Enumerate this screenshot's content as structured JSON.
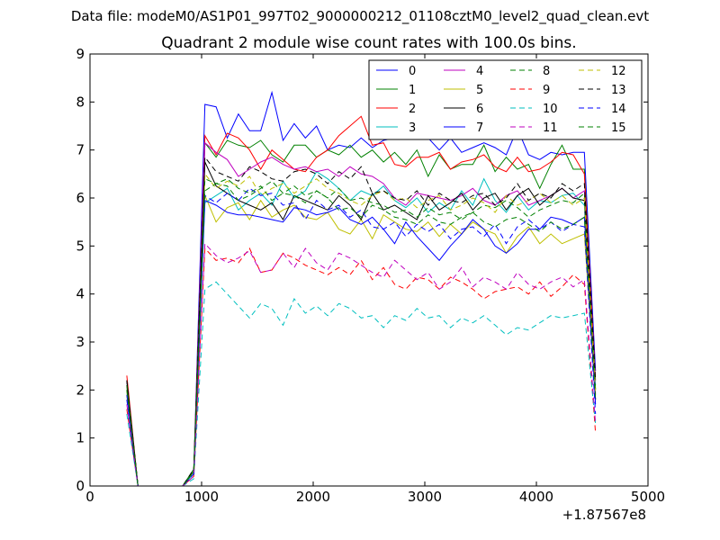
{
  "chart_data": {
    "type": "line",
    "suptitle": "Data file: modeM0/AS1P01_997T02_9000000212_01108cztM0_level2_quad_clean.evt",
    "title": "Quadrant 2 module wise count rates with 100.0s bins.",
    "xlabel": "",
    "ylabel": "",
    "x_offset_label": "+1.87567e8",
    "xlim": [
      0,
      5000
    ],
    "ylim": [
      0,
      9
    ],
    "xticks": [
      0,
      1000,
      2000,
      3000,
      4000,
      5000
    ],
    "yticks": [
      0,
      1,
      2,
      3,
      4,
      5,
      6,
      7,
      8,
      9
    ],
    "grid": false,
    "legend_position": "top-right",
    "legend_columns": 4,
    "x": [
      330,
      430,
      530,
      630,
      730,
      830,
      930,
      1030,
      1130,
      1230,
      1330,
      1430,
      1530,
      1630,
      1730,
      1830,
      1930,
      2030,
      2130,
      2230,
      2330,
      2430,
      2530,
      2630,
      2730,
      2830,
      2930,
      3030,
      3130,
      3230,
      3330,
      3430,
      3530,
      3630,
      3730,
      3830,
      3930,
      4030,
      4130,
      4230,
      4330,
      4430,
      4530
    ],
    "series": [
      {
        "name": "0",
        "color": "#0000ff",
        "dash": "solid",
        "values": [
          2.2,
          0,
          0,
          0,
          0,
          0,
          0.3,
          7.95,
          7.9,
          7.25,
          7.75,
          7.4,
          7.4,
          8.2,
          7.2,
          7.55,
          7.25,
          7.5,
          7.0,
          7.1,
          7.05,
          7.25,
          7.05,
          7.2,
          7.25,
          7.3,
          7.25,
          7.25,
          7.0,
          7.25,
          6.95,
          7.05,
          7.15,
          7.05,
          6.9,
          7.45,
          6.9,
          6.8,
          6.95,
          6.9,
          6.95,
          6.95,
          2.4
        ]
      },
      {
        "name": "1",
        "color": "#008000",
        "dash": "solid",
        "values": [
          2.1,
          0,
          0,
          0,
          0,
          0,
          0.35,
          7.15,
          6.85,
          7.2,
          7.1,
          7.05,
          7.2,
          6.9,
          6.75,
          7.1,
          7.1,
          6.85,
          7.0,
          6.9,
          7.1,
          6.85,
          7.0,
          6.75,
          6.95,
          6.7,
          7.0,
          6.45,
          6.9,
          6.6,
          6.7,
          6.7,
          7.1,
          6.55,
          6.85,
          6.6,
          6.7,
          6.2,
          6.7,
          7.1,
          6.6,
          6.6,
          2.0
        ]
      },
      {
        "name": "2",
        "color": "#ff0000",
        "dash": "solid",
        "values": [
          2.3,
          0,
          0,
          0,
          0,
          0,
          0.3,
          7.3,
          6.9,
          7.35,
          7.25,
          7.0,
          6.6,
          7.0,
          6.8,
          6.6,
          6.55,
          6.85,
          7.0,
          7.3,
          7.5,
          7.7,
          7.1,
          7.15,
          6.7,
          6.65,
          6.85,
          6.85,
          6.95,
          6.6,
          6.75,
          6.8,
          6.9,
          6.65,
          6.55,
          6.85,
          6.55,
          6.6,
          6.75,
          6.95,
          6.9,
          6.5,
          2.2
        ]
      },
      {
        "name": "3",
        "color": "#00bfbf",
        "dash": "solid",
        "values": [
          2.0,
          0,
          0,
          0,
          0,
          0,
          0.25,
          5.9,
          6.05,
          6.2,
          5.75,
          5.95,
          6.1,
          5.85,
          6.35,
          6.0,
          6.15,
          6.55,
          6.4,
          6.2,
          5.95,
          6.15,
          6.05,
          6.25,
          5.95,
          5.8,
          6.0,
          5.7,
          5.9,
          5.75,
          6.15,
          5.85,
          6.4,
          5.95,
          5.7,
          6.05,
          5.75,
          5.95,
          5.9,
          6.05,
          6.1,
          5.85,
          2.1
        ]
      },
      {
        "name": "4",
        "color": "#bf00bf",
        "dash": "solid",
        "values": [
          2.1,
          0,
          0,
          0,
          0,
          0,
          0.3,
          7.15,
          6.95,
          6.8,
          6.45,
          6.6,
          6.75,
          6.85,
          6.7,
          6.6,
          6.65,
          6.55,
          6.6,
          6.45,
          6.65,
          6.5,
          6.45,
          6.3,
          6.0,
          5.85,
          6.1,
          6.05,
          6.0,
          5.95,
          6.05,
          6.2,
          5.95,
          5.85,
          6.05,
          6.15,
          5.85,
          5.95,
          6.05,
          6.2,
          6.0,
          6.15,
          1.9
        ]
      },
      {
        "name": "5",
        "color": "#bfbf00",
        "dash": "solid",
        "values": [
          1.9,
          0,
          0,
          0,
          0,
          0,
          0.3,
          6.05,
          5.5,
          5.8,
          5.9,
          5.55,
          5.95,
          5.6,
          5.75,
          5.85,
          5.6,
          5.55,
          5.7,
          5.35,
          5.25,
          5.55,
          5.15,
          5.65,
          5.5,
          5.35,
          5.3,
          5.5,
          5.2,
          5.45,
          5.25,
          5.5,
          5.35,
          5.25,
          4.85,
          5.2,
          5.4,
          5.05,
          5.25,
          5.05,
          5.15,
          5.25,
          1.8
        ]
      },
      {
        "name": "6",
        "color": "#000000",
        "dash": "solid",
        "values": [
          2.2,
          0,
          0,
          0,
          0,
          0,
          0.3,
          6.75,
          6.25,
          6.1,
          5.95,
          5.85,
          5.75,
          5.9,
          5.55,
          6.05,
          5.95,
          5.85,
          5.75,
          6.05,
          5.85,
          5.55,
          6.1,
          5.75,
          5.85,
          5.7,
          5.55,
          6.05,
          5.75,
          5.9,
          6.1,
          5.75,
          6.0,
          6.1,
          5.75,
          6.05,
          6.2,
          5.85,
          6.05,
          6.2,
          6.0,
          5.95,
          1.8
        ]
      },
      {
        "name": "7",
        "color": "#0000ff",
        "dash": "solid",
        "values": [
          1.9,
          0,
          0,
          0,
          0,
          0,
          0.3,
          5.95,
          5.85,
          5.7,
          5.65,
          5.65,
          5.6,
          5.55,
          5.5,
          5.8,
          5.75,
          5.65,
          5.7,
          5.8,
          5.55,
          5.45,
          5.6,
          5.35,
          5.05,
          5.5,
          5.2,
          4.95,
          4.7,
          5.0,
          5.25,
          5.55,
          5.35,
          5.0,
          4.85,
          5.05,
          5.35,
          5.35,
          5.6,
          5.55,
          5.45,
          5.6,
          1.7
        ]
      },
      {
        "name": "8",
        "color": "#008000",
        "dash": "dashed",
        "values": [
          2.1,
          0,
          0,
          0,
          0,
          0,
          0.3,
          6.4,
          6.3,
          6.25,
          5.95,
          6.05,
          6.2,
          6.35,
          6.1,
          6.25,
          6.05,
          6.15,
          6.0,
          6.2,
          5.95,
          6.0,
          5.9,
          5.85,
          5.7,
          5.75,
          5.6,
          5.8,
          5.65,
          5.7,
          5.55,
          5.7,
          5.85,
          5.8,
          5.95,
          5.8,
          5.6,
          5.75,
          5.85,
          5.95,
          5.9,
          6.1,
          2.0
        ]
      },
      {
        "name": "9",
        "color": "#ff0000",
        "dash": "dashed",
        "values": [
          1.6,
          0,
          0,
          0,
          0,
          0,
          0.2,
          4.95,
          4.7,
          4.75,
          4.65,
          4.95,
          4.45,
          4.5,
          4.85,
          4.75,
          4.6,
          4.5,
          4.4,
          4.55,
          4.4,
          4.7,
          4.3,
          4.55,
          4.2,
          4.1,
          4.35,
          4.3,
          4.1,
          4.35,
          4.25,
          4.1,
          3.9,
          4.05,
          4.1,
          4.15,
          4.0,
          4.25,
          3.95,
          4.15,
          4.4,
          4.2,
          1.1
        ]
      },
      {
        "name": "10",
        "color": "#00bfbf",
        "dash": "dashed",
        "values": [
          1.5,
          0,
          0,
          0,
          0,
          0,
          0.15,
          4.1,
          4.25,
          4.0,
          3.75,
          3.5,
          3.8,
          3.7,
          3.35,
          3.9,
          3.6,
          3.75,
          3.55,
          3.8,
          3.7,
          3.5,
          3.55,
          3.3,
          3.55,
          3.45,
          3.7,
          3.5,
          3.55,
          3.3,
          3.5,
          3.4,
          3.55,
          3.35,
          3.15,
          3.3,
          3.25,
          3.4,
          3.55,
          3.5,
          3.55,
          3.6,
          1.3
        ]
      },
      {
        "name": "11",
        "color": "#bf00bf",
        "dash": "dashed",
        "values": [
          1.7,
          0,
          0,
          0,
          0,
          0,
          0.2,
          5.05,
          4.8,
          4.65,
          4.75,
          4.9,
          4.45,
          4.5,
          4.85,
          4.55,
          4.95,
          4.65,
          4.5,
          4.85,
          4.75,
          4.6,
          4.45,
          4.35,
          4.7,
          4.5,
          4.3,
          4.45,
          4.1,
          4.25,
          4.55,
          4.15,
          4.35,
          4.25,
          4.1,
          4.45,
          4.2,
          4.1,
          4.25,
          4.35,
          4.15,
          4.3,
          1.3
        ]
      },
      {
        "name": "12",
        "color": "#bfbf00",
        "dash": "dashed",
        "values": [
          2.0,
          0,
          0,
          0,
          0,
          0,
          0.3,
          6.5,
          6.2,
          6.35,
          6.25,
          6.45,
          6.05,
          6.2,
          6.3,
          6.1,
          6.25,
          6.4,
          6.2,
          6.1,
          5.95,
          5.85,
          6.05,
          6.15,
          5.95,
          6.0,
          5.8,
          5.95,
          6.05,
          5.75,
          5.85,
          6.0,
          5.9,
          5.7,
          6.05,
          5.85,
          5.95,
          6.1,
          5.9,
          6.05,
          5.85,
          6.0,
          1.9
        ]
      },
      {
        "name": "13",
        "color": "#000000",
        "dash": "dashed",
        "values": [
          2.2,
          0,
          0,
          0,
          0,
          0,
          0.35,
          6.85,
          6.55,
          6.45,
          6.35,
          6.65,
          6.55,
          6.4,
          6.35,
          6.55,
          6.6,
          6.5,
          6.3,
          6.55,
          6.4,
          6.65,
          6.1,
          6.15,
          6.0,
          5.95,
          6.15,
          5.85,
          6.1,
          5.95,
          5.9,
          6.05,
          6.1,
          5.85,
          6.0,
          6.3,
          5.95,
          6.1,
          6.0,
          6.3,
          6.15,
          6.3,
          2.2
        ]
      },
      {
        "name": "14",
        "color": "#0000ff",
        "dash": "dashed",
        "values": [
          1.8,
          0,
          0,
          0,
          0,
          0,
          0.25,
          6.05,
          5.9,
          6.1,
          5.95,
          6.2,
          6.05,
          6.1,
          5.85,
          5.9,
          5.55,
          5.95,
          5.75,
          5.85,
          5.6,
          5.75,
          5.4,
          5.35,
          5.5,
          5.2,
          5.45,
          5.3,
          5.45,
          5.15,
          5.35,
          5.4,
          5.2,
          5.45,
          5.05,
          5.4,
          5.55,
          5.35,
          5.5,
          5.3,
          5.45,
          5.4,
          1.5
        ]
      },
      {
        "name": "15",
        "color": "#008000",
        "dash": "dashed",
        "values": [
          2.0,
          0,
          0,
          0,
          0,
          0,
          0.3,
          6.15,
          6.3,
          6.4,
          6.2,
          6.1,
          6.25,
          5.95,
          6.1,
          6.05,
          5.9,
          6.15,
          6.0,
          5.75,
          5.8,
          5.6,
          5.85,
          5.75,
          5.6,
          5.55,
          5.45,
          5.65,
          5.5,
          5.45,
          5.6,
          5.7,
          5.5,
          5.4,
          5.55,
          5.6,
          5.45,
          5.3,
          5.5,
          5.35,
          5.45,
          5.6,
          1.8
        ]
      }
    ]
  }
}
